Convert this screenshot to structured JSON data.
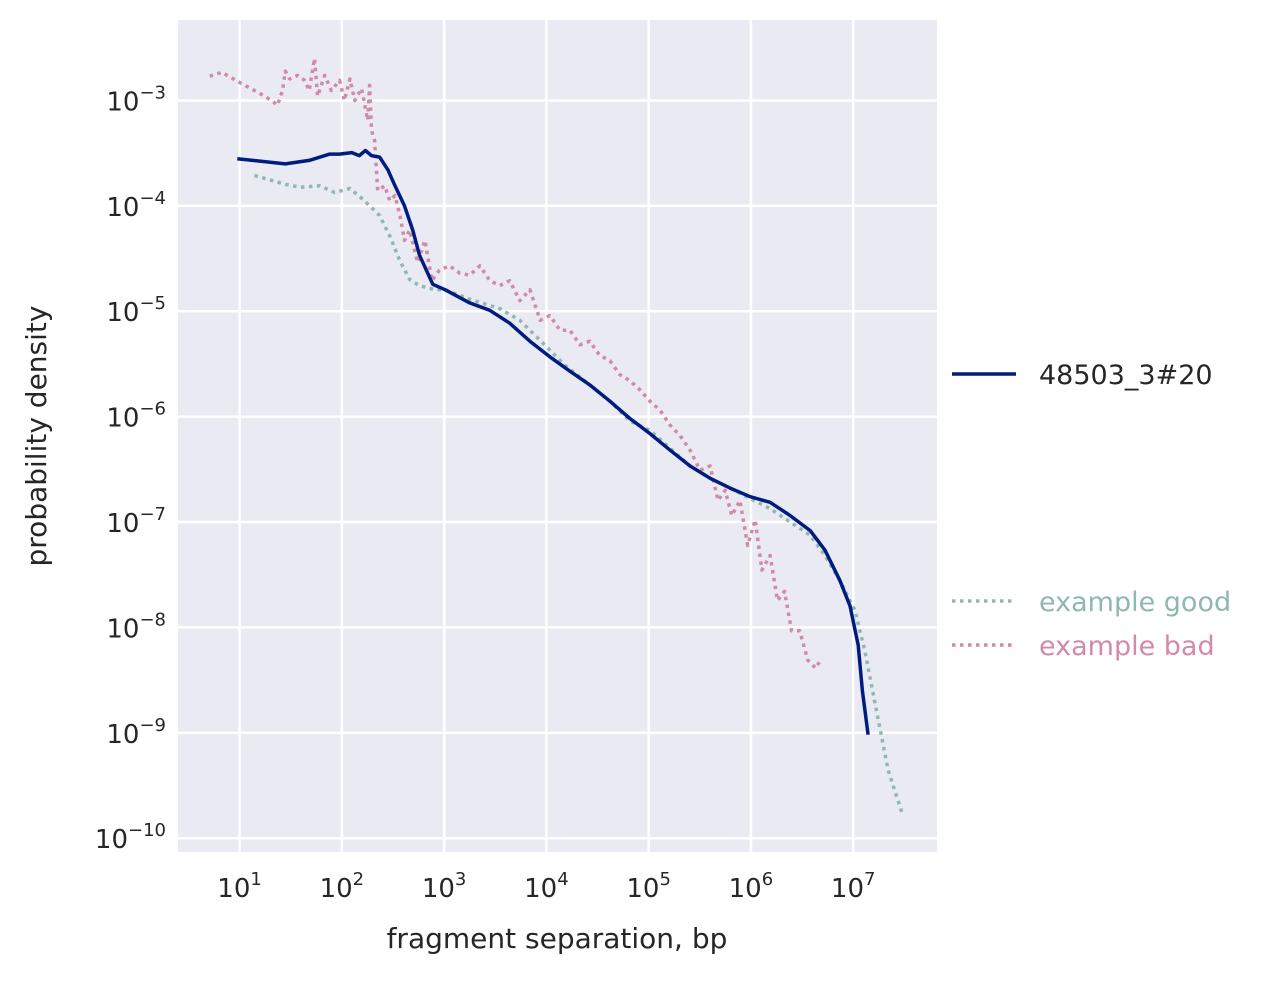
{
  "chart_data": {
    "type": "line",
    "title": "",
    "xlabel": "fragment separation, bp",
    "ylabel": "probability density",
    "xscale": "log",
    "yscale": "log",
    "xlim": [
      2.5,
      66000000
    ],
    "ylim": [
      7.4e-11,
      0.0058
    ],
    "grid": true,
    "background": "#eaeaf2",
    "x_ticks": [
      {
        "value": 10,
        "base": "10",
        "exp": "1"
      },
      {
        "value": 100,
        "base": "10",
        "exp": "2"
      },
      {
        "value": 1000,
        "base": "10",
        "exp": "3"
      },
      {
        "value": 10000,
        "base": "10",
        "exp": "4"
      },
      {
        "value": 100000,
        "base": "10",
        "exp": "5"
      },
      {
        "value": 1000000,
        "base": "10",
        "exp": "6"
      },
      {
        "value": 10000000,
        "base": "10",
        "exp": "7"
      }
    ],
    "y_ticks": [
      {
        "value": 0.001,
        "base": "10",
        "exp": "−3"
      },
      {
        "value": 0.0001,
        "base": "10",
        "exp": "−4"
      },
      {
        "value": 1e-05,
        "base": "10",
        "exp": "−5"
      },
      {
        "value": 1e-06,
        "base": "10",
        "exp": "−6"
      },
      {
        "value": 1e-07,
        "base": "10",
        "exp": "−7"
      },
      {
        "value": 1e-08,
        "base": "10",
        "exp": "−8"
      },
      {
        "value": 1e-09,
        "base": "10",
        "exp": "−9"
      },
      {
        "value": 1e-10,
        "base": "10",
        "exp": "−10"
      }
    ],
    "legend_placement": "right",
    "series": [
      {
        "name": "48503_3#20",
        "color": "#001c7f",
        "style": "solid",
        "x": [
          9.5,
          28,
          48,
          76,
          95,
          125,
          148,
          170,
          195,
          234,
          282,
          331,
          410,
          493,
          575,
          776,
          1020,
          1780,
          2800,
          4380,
          6900,
          10800,
          17000,
          26600,
          41800,
          65600,
          103000,
          162000,
          254000,
          399000,
          626000,
          983000,
          1540000,
          2420000,
          3800000,
          5300000,
          7400000,
          9300000,
          11200000,
          12300000,
          14000000
        ],
        "y": [
          0.00028,
          0.00025,
          0.00027,
          0.00031,
          0.00031,
          0.00032,
          0.0003,
          0.000335,
          0.0003,
          0.00029,
          0.00022,
          0.000155,
          0.0001,
          5.9e-05,
          3.4e-05,
          1.8e-05,
          1.6e-05,
          1.2e-05,
          1.02e-05,
          7.7e-06,
          5.2e-06,
          3.7e-06,
          2.7e-06,
          2e-06,
          1.4e-06,
          9.6e-07,
          6.9e-07,
          4.8e-07,
          3.4e-07,
          2.6e-07,
          2.1e-07,
          1.74e-07,
          1.54e-07,
          1.15e-07,
          8.3e-08,
          5.4e-08,
          2.8e-08,
          1.6e-08,
          6.8e-09,
          2.5e-09,
          9.6e-10
        ]
      },
      {
        "name": "example good",
        "color": "#8fb8b0",
        "style": "dotted",
        "x": [
          14,
          28,
          39,
          61,
          85,
          120,
          166,
          234,
          294,
          370,
          460,
          575,
          810,
          1020,
          1780,
          3500,
          5500,
          9600,
          15000,
          26600,
          41800,
          65600,
          103000,
          162000,
          254000,
          399000,
          626000,
          983000,
          1540000,
          2420000,
          3800000,
          5300000,
          7400000,
          10400000,
          13000000,
          16200000,
          22000000,
          30000000
        ],
        "y": [
          0.000194,
          0.00016,
          0.00015,
          0.000155,
          0.000134,
          0.000146,
          0.000112,
          8.1e-05,
          5.2e-05,
          3e-05,
          2e-05,
          1.75e-05,
          1.6e-05,
          1.6e-05,
          1.3e-05,
          1.06e-05,
          8.2e-06,
          4.8e-06,
          3.1e-06,
          2e-06,
          1.4e-06,
          9.1e-07,
          7.4e-07,
          5e-07,
          3.4e-07,
          2.6e-07,
          2.1e-07,
          1.67e-07,
          1.34e-07,
          1e-07,
          7.5e-08,
          4.8e-08,
          2.8e-08,
          1.45e-08,
          6e-09,
          2e-09,
          4.4e-10,
          1.74e-10
        ]
      },
      {
        "name": "example bad",
        "color": "#d38aa6",
        "style": "dotted",
        "x": [
          5.1,
          6.7,
          10,
          15.7,
          20.6,
          23.5,
          26.3,
          28,
          31,
          37,
          43.3,
          48,
          54,
          58,
          68,
          79,
          95,
          106,
          120,
          134,
          156,
          179,
          187,
          195,
          209,
          224,
          263,
          294,
          331,
          370,
          410,
          460,
          550,
          650,
          760,
          900,
          1130,
          1420,
          1780,
          2240,
          2800,
          3500,
          4380,
          5500,
          6900,
          8700,
          10800,
          13600,
          17000,
          21300,
          26600,
          33300,
          41800,
          52300,
          65600,
          82000,
          103000,
          129000,
          162000,
          203000,
          254000,
          318000,
          399000,
          477000,
          560000,
          650000,
          780000,
          930000,
          1100000,
          1280000,
          1540000,
          1820000,
          2130000,
          2500000,
          3000000,
          3600000,
          4300000,
          4900000
        ],
        "y": [
          0.0017,
          0.00185,
          0.00148,
          0.00117,
          0.001,
          0.0009,
          0.00124,
          0.0019,
          0.0016,
          0.00173,
          0.00155,
          0.00124,
          0.0025,
          0.0011,
          0.00173,
          0.00124,
          0.00155,
          0.001,
          0.0016,
          0.001,
          0.0013,
          0.00065,
          0.00139,
          0.00052,
          0.00042,
          0.00014,
          0.000155,
          0.000112,
          0.000125,
          8.1e-05,
          4.7e-05,
          5.9e-05,
          2.9e-05,
          4.7e-05,
          1.95e-05,
          2.45e-05,
          2.7e-05,
          2.3e-05,
          2.2e-05,
          2.7e-05,
          1.95e-05,
          1.75e-05,
          1.95e-05,
          1.26e-05,
          1.6e-05,
          8.2e-06,
          9.1e-06,
          6.6e-06,
          6.6e-06,
          4.8e-06,
          5.2e-06,
          3.8e-06,
          3.4e-06,
          2.5e-06,
          2.2e-06,
          1.8e-06,
          1.4e-06,
          1.15e-06,
          8.3e-07,
          6.6e-07,
          4.8e-07,
          3.1e-07,
          3.4e-07,
          1.6e-07,
          2e-07,
          1.15e-07,
          1.6e-07,
          6e-08,
          1.05e-07,
          3.5e-08,
          4.8e-08,
          1.8e-08,
          2.2e-08,
          9.3e-09,
          9.3e-09,
          4.9e-09,
          4.1e-09,
          5.1e-09
        ]
      }
    ]
  }
}
